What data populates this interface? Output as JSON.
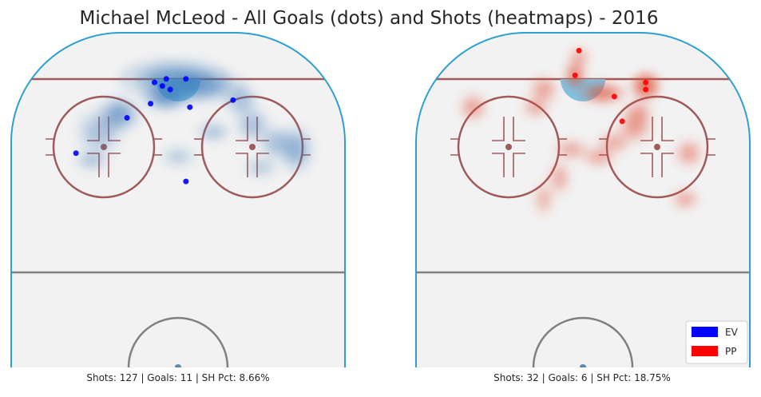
{
  "chart_data": {
    "type": "heatmap",
    "title": "Michael McLeod - All Goals (dots) and Shots (heatmaps) - 2016",
    "colors": {
      "ev": "#0000ff",
      "pp": "#ff0000",
      "ev_heat": "#3a78b8",
      "pp_heat": "#e0503a",
      "board": "#2e9fd0",
      "red_line": "#a05a5a",
      "center_line": "#808080",
      "crease": "#7ec4e2",
      "ice": "#f2f2f2"
    },
    "panels": [
      {
        "name": "EV",
        "caption": "Shots: 127 | Goals: 11 | SH Pct: 8.66%",
        "shots": 127,
        "goals": 11,
        "sh_pct": 8.66,
        "goal_points": [
          {
            "x": -6,
            "y": 77
          },
          {
            "x": -3,
            "y": 78
          },
          {
            "x": -2,
            "y": 75
          },
          {
            "x": -4,
            "y": 76
          },
          {
            "x": 2,
            "y": 78
          },
          {
            "x": -7,
            "y": 71
          },
          {
            "x": 3,
            "y": 70
          },
          {
            "x": -13,
            "y": 67
          },
          {
            "x": 14,
            "y": 72
          },
          {
            "x": -26,
            "y": 57
          },
          {
            "x": 2,
            "y": 49
          }
        ],
        "shot_density": [
          {
            "x": -1,
            "y": 78,
            "sx": 9,
            "sy": 3.5,
            "w": 0.55
          },
          {
            "x": 6,
            "y": 76,
            "sx": 7,
            "sy": 3,
            "w": 0.45
          },
          {
            "x": -3,
            "y": 73,
            "sx": 4,
            "sy": 2.5,
            "w": 0.6
          },
          {
            "x": -15,
            "y": 68,
            "sx": 3.5,
            "sy": 3,
            "w": 0.5
          },
          {
            "x": -20,
            "y": 63,
            "sx": 4,
            "sy": 4,
            "w": 0.3
          },
          {
            "x": 16,
            "y": 72,
            "sx": 3,
            "sy": 3,
            "w": 0.3
          },
          {
            "x": 19,
            "y": 65,
            "sx": 3,
            "sy": 3,
            "w": 0.3
          },
          {
            "x": 25,
            "y": 60,
            "sx": 3,
            "sy": 3,
            "w": 0.3
          },
          {
            "x": 30,
            "y": 58,
            "sx": 3,
            "sy": 4,
            "w": 0.4
          },
          {
            "x": 9,
            "y": 63,
            "sx": 3,
            "sy": 2,
            "w": 0.25
          },
          {
            "x": -22,
            "y": 55,
            "sx": 3,
            "sy": 2,
            "w": 0.25
          },
          {
            "x": 0,
            "y": 56,
            "sx": 3,
            "sy": 2,
            "w": 0.2
          },
          {
            "x": 21,
            "y": 53,
            "sx": 3,
            "sy": 2,
            "w": 0.2
          }
        ]
      },
      {
        "name": "PP",
        "caption": "Shots: 32 | Goals: 6 | SH Pct: 18.75%",
        "shots": 32,
        "goals": 6,
        "sh_pct": 18.75,
        "goal_points": [
          {
            "x": -1,
            "y": 86
          },
          {
            "x": -2,
            "y": 79
          },
          {
            "x": 16,
            "y": 77
          },
          {
            "x": 16,
            "y": 75
          },
          {
            "x": 8,
            "y": 73
          },
          {
            "x": 10,
            "y": 66
          }
        ],
        "shot_density": [
          {
            "x": 5,
            "y": 74,
            "sx": 4,
            "sy": 2,
            "w": 0.6
          },
          {
            "x": 16,
            "y": 76,
            "sx": 2.5,
            "sy": 2.5,
            "w": 0.8
          },
          {
            "x": -2,
            "y": 79,
            "sx": 2,
            "sy": 2.5,
            "w": 0.55
          },
          {
            "x": -1,
            "y": 84,
            "sx": 2,
            "sy": 2,
            "w": 0.3
          },
          {
            "x": -10,
            "y": 75,
            "sx": 2.5,
            "sy": 2.5,
            "w": 0.35
          },
          {
            "x": -28,
            "y": 70,
            "sx": 2.5,
            "sy": 2.5,
            "w": 0.35
          },
          {
            "x": -12,
            "y": 70,
            "sx": 2.5,
            "sy": 2,
            "w": 0.3
          },
          {
            "x": 14,
            "y": 68,
            "sx": 2.5,
            "sy": 2.5,
            "w": 0.4
          },
          {
            "x": 13,
            "y": 64,
            "sx": 3,
            "sy": 2.5,
            "w": 0.35
          },
          {
            "x": 8,
            "y": 60,
            "sx": 3,
            "sy": 2,
            "w": 0.3
          },
          {
            "x": -3,
            "y": 58,
            "sx": 3,
            "sy": 2,
            "w": 0.3
          },
          {
            "x": 4,
            "y": 56,
            "sx": 3,
            "sy": 2,
            "w": 0.3
          },
          {
            "x": 27,
            "y": 57,
            "sx": 2.5,
            "sy": 2.5,
            "w": 0.35
          },
          {
            "x": -6,
            "y": 50,
            "sx": 2,
            "sy": 3,
            "w": 0.3
          },
          {
            "x": -10,
            "y": 44,
            "sx": 2,
            "sy": 3,
            "w": 0.25
          },
          {
            "x": 26,
            "y": 44,
            "sx": 2.5,
            "sy": 2,
            "w": 0.3
          }
        ]
      }
    ],
    "legend": {
      "position": "bottom-right",
      "items": [
        {
          "label": "EV",
          "color": "#0000ff"
        },
        {
          "label": "PP",
          "color": "#ff0000"
        }
      ]
    }
  }
}
